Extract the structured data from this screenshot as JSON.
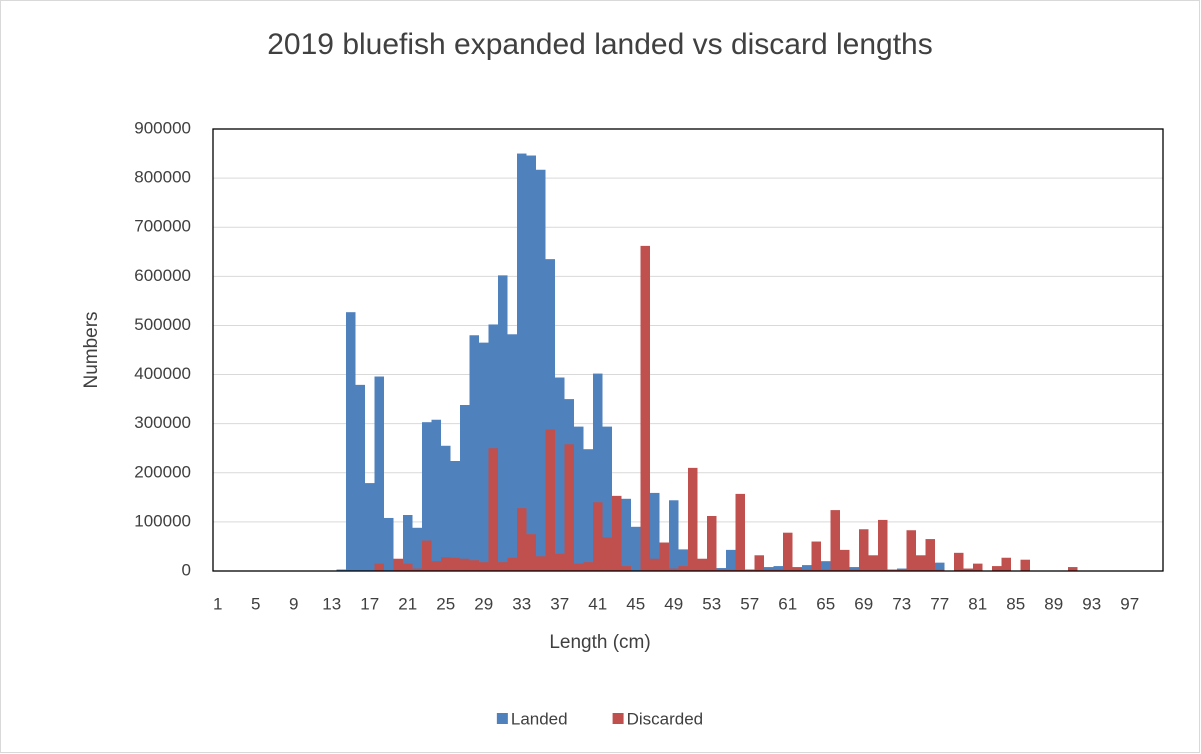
{
  "chart_data": {
    "type": "bar",
    "title": "2019 bluefish expanded landed vs discard lengths",
    "x_label": "Length (cm)",
    "y_label": "Numbers",
    "categories": [
      1,
      null,
      null,
      null,
      5,
      null,
      null,
      null,
      9,
      null,
      null,
      null,
      13,
      null,
      null,
      null,
      17,
      null,
      null,
      null,
      21,
      null,
      null,
      null,
      25,
      null,
      null,
      null,
      29,
      null,
      null,
      null,
      33,
      null,
      null,
      null,
      37,
      null,
      null,
      null,
      41,
      null,
      null,
      null,
      45,
      null,
      null,
      null,
      49,
      null,
      null,
      null,
      53,
      null,
      null,
      null,
      57,
      null,
      null,
      null,
      61,
      null,
      null,
      null,
      65,
      null,
      null,
      null,
      69,
      null,
      null,
      null,
      73,
      null,
      null,
      null,
      77,
      null,
      null,
      null,
      81,
      null,
      null,
      null,
      85,
      null,
      null,
      null,
      89,
      null,
      null,
      null,
      93,
      null,
      null,
      null,
      97,
      null,
      null,
      null
    ],
    "series": [
      {
        "name": "Landed",
        "color": "#4f81bd",
        "values": [
          0,
          0,
          0,
          0,
          0,
          0,
          0,
          0,
          0,
          0,
          0,
          0,
          0,
          3000,
          527000,
          379000,
          179000,
          396000,
          108000,
          10000,
          114000,
          88000,
          303000,
          308000,
          255000,
          224000,
          338000,
          480000,
          465000,
          502000,
          602000,
          482000,
          850000,
          846000,
          817000,
          635000,
          394000,
          350000,
          294000,
          248000,
          402000,
          294000,
          148000,
          147000,
          90000,
          25000,
          159000,
          45000,
          144000,
          44000,
          10000,
          5000,
          3000,
          6000,
          43000,
          10000,
          3000,
          5000,
          8000,
          10000,
          3000,
          5000,
          12000,
          5000,
          20000,
          5000,
          3000,
          8000,
          5000,
          3000,
          2000,
          3000,
          5000,
          3000,
          2000,
          3000,
          17000,
          0,
          0,
          0,
          0,
          0,
          0,
          0,
          0,
          0,
          0,
          0,
          0,
          0,
          0,
          0,
          0,
          0,
          0,
          0,
          0,
          0,
          0,
          0
        ]
      },
      {
        "name": "Discarded",
        "color": "#c0504d",
        "values": [
          0,
          0,
          0,
          0,
          0,
          0,
          0,
          0,
          0,
          0,
          0,
          0,
          0,
          0,
          0,
          0,
          0,
          15000,
          0,
          25000,
          15000,
          5000,
          62000,
          20000,
          28000,
          27000,
          25000,
          22000,
          18000,
          250000,
          18000,
          27000,
          128000,
          75000,
          30000,
          288000,
          35000,
          258000,
          15000,
          18000,
          140000,
          68000,
          153000,
          10000,
          0,
          662000,
          25000,
          58000,
          5000,
          10000,
          210000,
          25000,
          112000,
          3000,
          3000,
          157000,
          3000,
          32000,
          3000,
          3000,
          78000,
          8000,
          3000,
          60000,
          3000,
          124000,
          43000,
          3000,
          85000,
          32000,
          104000,
          3000,
          3000,
          83000,
          32000,
          65000,
          3000,
          0,
          37000,
          5000,
          15000,
          0,
          10000,
          27000,
          0,
          23000,
          0,
          0,
          0,
          0,
          8000,
          0,
          0,
          0,
          0,
          0,
          0,
          0,
          0,
          0
        ]
      }
    ],
    "ylim": [
      0,
      900000
    ],
    "yticks": [
      0,
      100000,
      200000,
      300000,
      400000,
      500000,
      600000,
      700000,
      800000,
      900000
    ],
    "grid": true,
    "legend": "bottom"
  }
}
